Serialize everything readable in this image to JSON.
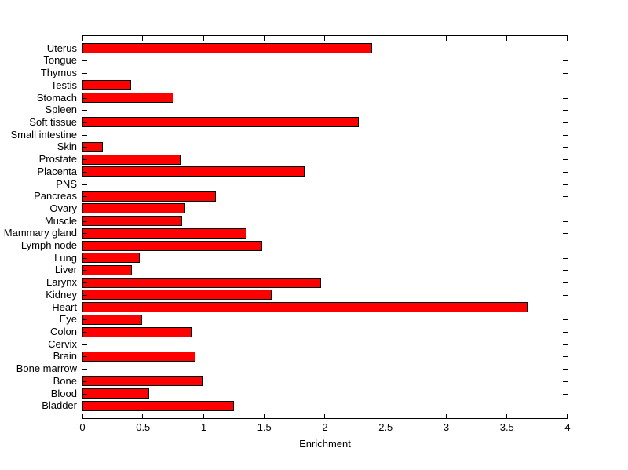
{
  "figure": {
    "background": "#FFFFFF"
  },
  "chart_data": {
    "type": "bar",
    "orientation": "horizontal",
    "title": "",
    "xlabel": "Enrichment",
    "ylabel": "",
    "xlim": [
      0,
      4
    ],
    "xticks": [
      0,
      0.5,
      1,
      1.5,
      2,
      2.5,
      3,
      3.5,
      4
    ],
    "xtick_labels": [
      "0",
      "0.5",
      "1",
      "1.5",
      "2",
      "2.5",
      "3",
      "3.5",
      "4"
    ],
    "grid": false,
    "legend": null,
    "bar_color": "#FF0000",
    "bar_edge_color": "#000000",
    "axis_color": "#000000",
    "text_color": "#000000",
    "categories": [
      "Uterus",
      "Tongue",
      "Thymus",
      "Testis",
      "Stomach",
      "Spleen",
      "Soft tissue",
      "Small intestine",
      "Skin",
      "Prostate",
      "Placenta",
      "PNS",
      "Pancreas",
      "Ovary",
      "Muscle",
      "Mammary gland",
      "Lymph node",
      "Lung",
      "Liver",
      "Larynx",
      "Kidney",
      "Heart",
      "Eye",
      "Colon",
      "Cervix",
      "Brain",
      "Bone marrow",
      "Bone",
      "Blood",
      "Bladder"
    ],
    "values": [
      2.39,
      0,
      0,
      0.4,
      0.75,
      0,
      2.28,
      0,
      0.17,
      0.81,
      1.83,
      0,
      1.1,
      0.85,
      0.82,
      1.35,
      1.48,
      0.47,
      0.41,
      1.97,
      1.56,
      3.67,
      0.49,
      0.9,
      0,
      0.93,
      0,
      0.99,
      0.55,
      1.25
    ]
  }
}
